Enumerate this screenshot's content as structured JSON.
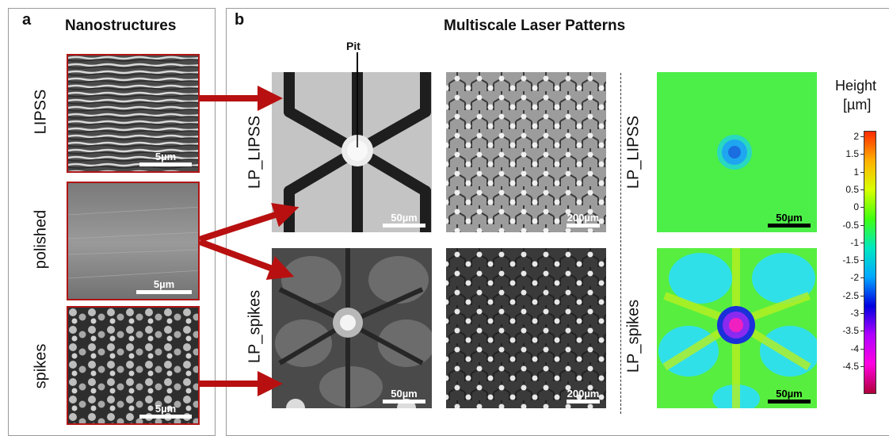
{
  "panel_a": {
    "letter": "a",
    "title": "Nanostructures",
    "rows": [
      {
        "label": "LIPSS",
        "scale": "5µm"
      },
      {
        "label": "polished",
        "scale": "5µm"
      },
      {
        "label": "spikes",
        "scale": "5µm"
      }
    ]
  },
  "panel_b": {
    "letter": "b",
    "title": "Multiscale Laser Patterns",
    "pit_label": "Pit",
    "rows": [
      {
        "label": "LP_LIPSS",
        "scale_sem_zoom": "50µm",
        "scale_sem_wide": "200µm",
        "scale_height": "50µm"
      },
      {
        "label": "LP_spikes",
        "scale_sem_zoom": "50µm",
        "scale_sem_wide": "200µm",
        "scale_height": "50µm"
      }
    ]
  },
  "colorbar": {
    "title_line1": "Height",
    "title_line2": "[µm]",
    "ticks": [
      "2",
      "1.5",
      "1",
      "0.5",
      "0",
      "-0.5",
      "-1",
      "-1.5",
      "-2",
      "-2.5",
      "-3",
      "-3.5",
      "-4",
      "-4.5"
    ],
    "colors": [
      "#ff2a00",
      "#ffb000",
      "#d8ff00",
      "#40ff10",
      "#00e8c0",
      "#00a8ff",
      "#0000e0",
      "#b000ff",
      "#ff00e0",
      "#b0003a"
    ]
  }
}
